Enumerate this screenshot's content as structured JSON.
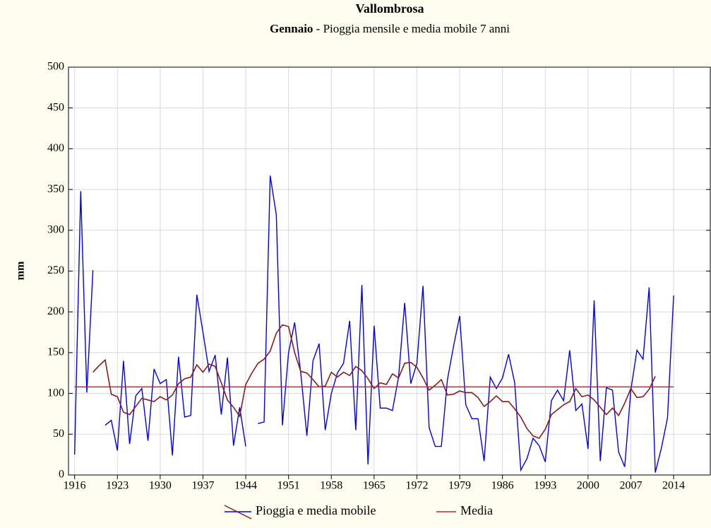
{
  "chart_data": {
    "type": "line",
    "title": "Vallombrosa",
    "subtitle_bold": "Gennaio",
    "subtitle": " - Pioggia mensile e media mobile 7 anni",
    "ylabel": "mm",
    "x": [
      1916,
      1917,
      1918,
      1919,
      1920,
      1921,
      1922,
      1923,
      1924,
      1925,
      1926,
      1927,
      1928,
      1929,
      1930,
      1931,
      1932,
      1933,
      1934,
      1935,
      1936,
      1937,
      1938,
      1939,
      1940,
      1941,
      1942,
      1943,
      1944,
      1945,
      1946,
      1947,
      1948,
      1949,
      1950,
      1951,
      1952,
      1953,
      1954,
      1955,
      1956,
      1957,
      1958,
      1959,
      1960,
      1961,
      1962,
      1963,
      1964,
      1965,
      1966,
      1967,
      1968,
      1969,
      1970,
      1971,
      1972,
      1973,
      1974,
      1975,
      1976,
      1977,
      1978,
      1979,
      1980,
      1981,
      1982,
      1983,
      1984,
      1985,
      1986,
      1987,
      1988,
      1989,
      1990,
      1991,
      1992,
      1993,
      1994,
      1995,
      1996,
      1997,
      1998,
      1999,
      2000,
      2001,
      2002,
      2003,
      2004,
      2005,
      2006,
      2007,
      2008,
      2009,
      2010,
      2011,
      2012,
      2013,
      2014
    ],
    "series": [
      {
        "name": "Pioggia e media mobile",
        "color": "#0000ee",
        "values": [
          25,
          348,
          101,
          251,
          null,
          61,
          67,
          30,
          140,
          38,
          97,
          106,
          42,
          130,
          112,
          117,
          24,
          145,
          71,
          73,
          221,
          175,
          127,
          147,
          74,
          144,
          36,
          83,
          35,
          null,
          63,
          65,
          367,
          319,
          61,
          150,
          187,
          125,
          48,
          140,
          161,
          55,
          100,
          125,
          137,
          189,
          55,
          233,
          13,
          183,
          82,
          82,
          79,
          120,
          211,
          112,
          137,
          232,
          58,
          35,
          35,
          117,
          158,
          195,
          86,
          69,
          69,
          17,
          120,
          106,
          119,
          148,
          113,
          6,
          20,
          45,
          36,
          16,
          91,
          104,
          91,
          153,
          79,
          87,
          32,
          214,
          17,
          107,
          104,
          28,
          10,
          104,
          153,
          142,
          230,
          3,
          33,
          70,
          220
        ],
        "moving_average": {
          "color": "#8b1a1a",
          "values": [
            null,
            null,
            null,
            126,
            134,
            141,
            99,
            96,
            77,
            74,
            84,
            94,
            92,
            90,
            96,
            92,
            98,
            112,
            118,
            120,
            135,
            126,
            136,
            133,
            113,
            92,
            83,
            72,
            111,
            125,
            137,
            142,
            152,
            174,
            184,
            182,
            150,
            127,
            125,
            117,
            108,
            109,
            126,
            120,
            126,
            122,
            133,
            128,
            118,
            106,
            113,
            111,
            124,
            119,
            137,
            138,
            132,
            119,
            104,
            110,
            117,
            98,
            99,
            103,
            101,
            101,
            95,
            84,
            90,
            97,
            90,
            90,
            81,
            71,
            57,
            48,
            45,
            56,
            74,
            80,
            86,
            90,
            106,
            96,
            98,
            92,
            83,
            74,
            82,
            73,
            88,
            106,
            95,
            96,
            105,
            121,
            null,
            null,
            null
          ]
        }
      },
      {
        "name": "Media",
        "color": "#c0282d",
        "value": 108
      }
    ],
    "xlim": [
      1915,
      2020
    ],
    "xticks": [
      1916,
      1923,
      1930,
      1937,
      1944,
      1951,
      1958,
      1965,
      1972,
      1979,
      1986,
      1993,
      2000,
      2007,
      2014
    ],
    "ylim": [
      0,
      500
    ],
    "yticks": [
      0,
      50,
      100,
      150,
      200,
      250,
      300,
      350,
      400,
      450,
      500
    ],
    "grid": true
  }
}
